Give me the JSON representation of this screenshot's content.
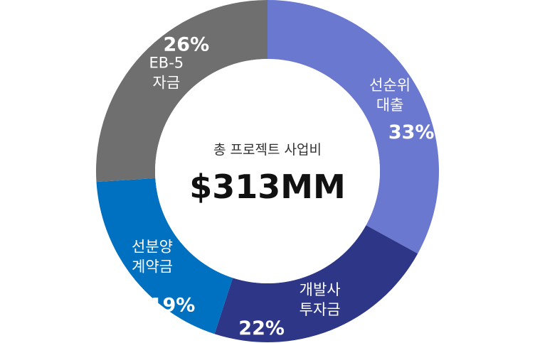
{
  "chart_data": {
    "type": "pie",
    "center_title": "총 프로젝트 사업비",
    "center_total": "$313MM",
    "slices": [
      {
        "label": [
          "선순위",
          "대출"
        ],
        "value": 33,
        "value_label": "33%",
        "color": "#6b78cf"
      },
      {
        "label": [
          "개발사",
          "투자금"
        ],
        "value": 22,
        "value_label": "22%",
        "color": "#2e3787"
      },
      {
        "label": [
          "선분양",
          "계약금"
        ],
        "value": 19,
        "value_label": "19%",
        "color": "#0070c0"
      },
      {
        "label": [
          "EB-5",
          "자금"
        ],
        "value": 26,
        "value_label": "26%",
        "color": "#6f6f6f"
      }
    ]
  }
}
